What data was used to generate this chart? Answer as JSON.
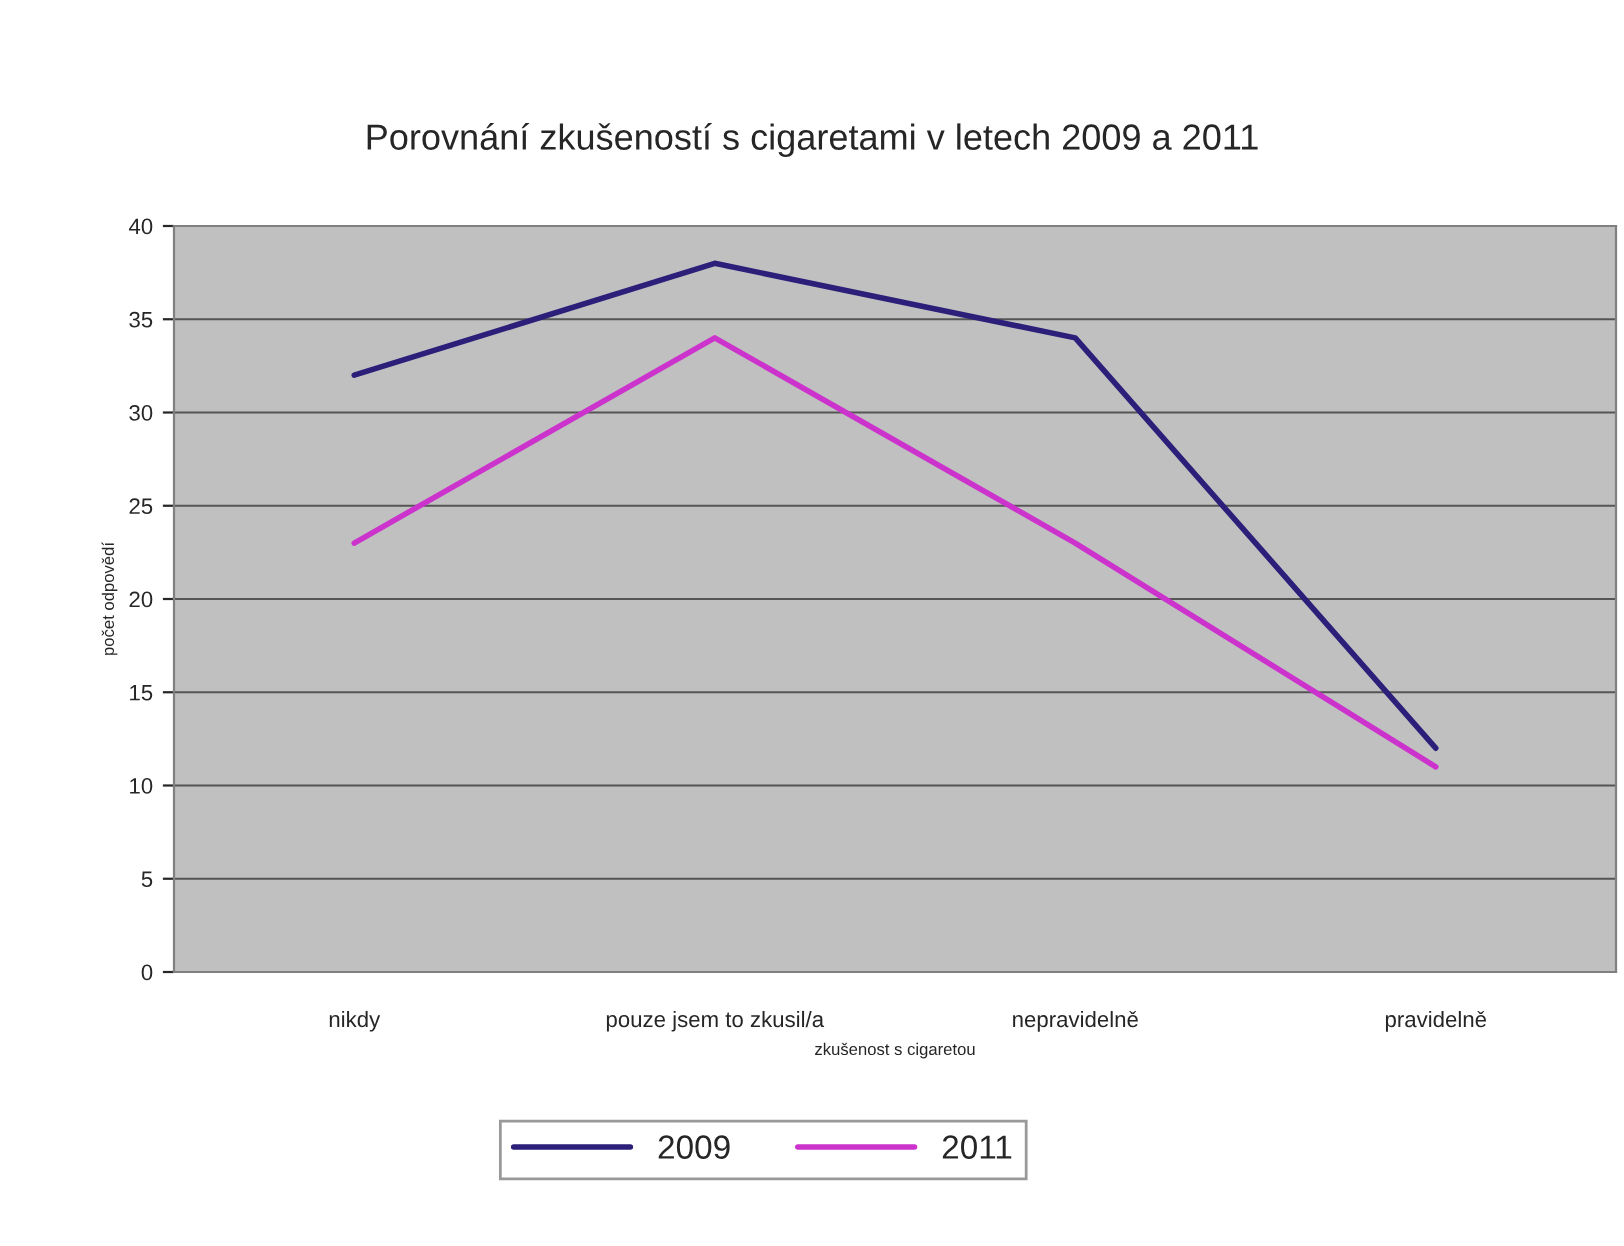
{
  "chart_data": {
    "type": "line",
    "title": "Porovnání zkušeností s cigaretami v letech 2009 a 2011",
    "xlabel": "zkušenost s cigaretou",
    "ylabel": "počet odpovědí",
    "categories": [
      "nikdy",
      "pouze jsem to zkusil/a",
      "nepravidelně",
      "pravidelně"
    ],
    "series": [
      {
        "name": "2009",
        "color": "#2b1f7a",
        "values": [
          32,
          38,
          34,
          12
        ]
      },
      {
        "name": "2011",
        "color": "#cc33cc",
        "values": [
          23,
          34,
          23,
          11
        ]
      }
    ],
    "ylim": [
      0,
      40
    ],
    "yticks": [
      0,
      5,
      10,
      15,
      20,
      25,
      30,
      35,
      40
    ],
    "grid": "y",
    "legend": "bottom",
    "marker": "none",
    "line_style": "solid"
  }
}
